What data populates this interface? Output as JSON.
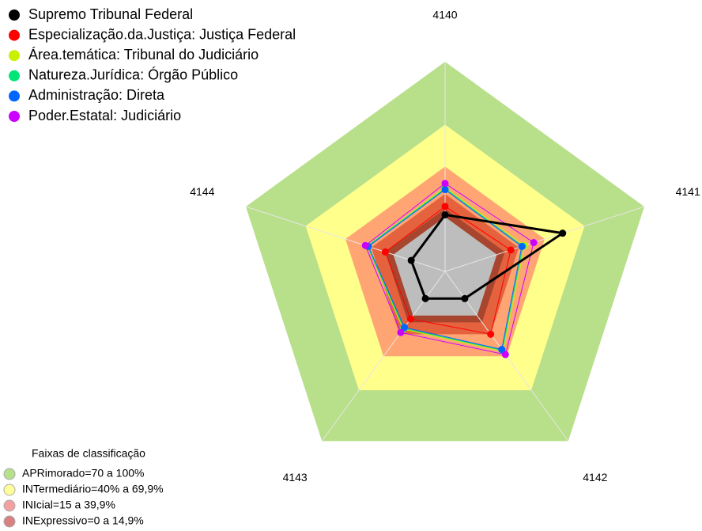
{
  "chart_data": {
    "type": "radar",
    "categories": [
      "4140",
      "4141",
      "4142",
      "4143",
      "4144"
    ],
    "rlim": [
      0,
      100
    ],
    "rings": [
      {
        "value": 100,
        "color": "#b8df8a"
      },
      {
        "value": 70,
        "color": "#ffff8c"
      },
      {
        "value": 50,
        "color": "#ffa574"
      },
      {
        "value": 37,
        "color": "#e4633e"
      },
      {
        "value": 30,
        "color": "#a8452e"
      },
      {
        "value": 26,
        "color": "#bdbdbd"
      }
    ],
    "series": [
      {
        "name": "Supremo Tribunal Federal",
        "color": "#000000",
        "values": [
          27,
          59,
          16,
          16,
          17
        ]
      },
      {
        "name": "Especialização.da.Justiça: Justiça Federal",
        "color": "#ff0000",
        "values": [
          31,
          33,
          37,
          28,
          30
        ]
      },
      {
        "name": "Área.temática: Tribunal do Judiciário",
        "color": "#c8f000",
        "values": [
          40,
          40,
          47,
          34,
          39
        ]
      },
      {
        "name": "Natureza.Jurídica: Órgão Público",
        "color": "#00e676",
        "values": [
          39.5,
          39,
          46.5,
          33.5,
          39
        ]
      },
      {
        "name": "Administração: Direta",
        "color": "#0066ff",
        "values": [
          39,
          38.5,
          46,
          33,
          38.5
        ]
      },
      {
        "name": "Poder.Estatal: Judiciário",
        "color": "#cc00ff",
        "values": [
          42,
          44.5,
          49,
          36,
          40
        ]
      }
    ],
    "bands_title": "Faixas de classificação",
    "bands": [
      {
        "label": "APRimorado=70 a 100%",
        "color": "#b5e08c"
      },
      {
        "label": "INTermediário=40% a 69,9%",
        "color": "#ffff99"
      },
      {
        "label": "INIcial=15 a 39,9%",
        "color": "#f4a0a0"
      },
      {
        "label": "INExpressivo=0 a 14,9%",
        "color": "#d98080"
      }
    ]
  }
}
